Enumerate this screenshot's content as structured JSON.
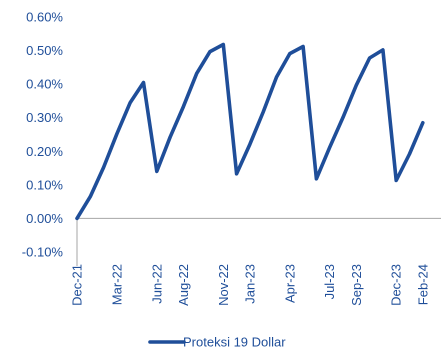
{
  "chart_data": {
    "type": "line",
    "title": "",
    "xlabel": "",
    "ylabel": "",
    "ylim": [
      -0.001,
      0.006
    ],
    "y_ticks": [
      {
        "value": 0.006,
        "label": "0.60%"
      },
      {
        "value": 0.005,
        "label": "0.50%"
      },
      {
        "value": 0.004,
        "label": "0.40%"
      },
      {
        "value": 0.003,
        "label": "0.30%"
      },
      {
        "value": 0.002,
        "label": "0.20%"
      },
      {
        "value": 0.001,
        "label": "0.10%"
      },
      {
        "value": 0.0,
        "label": "0.00%"
      },
      {
        "value": -0.001,
        "label": "-0.10%"
      }
    ],
    "x_ticks": [
      "Dec-21",
      "Mar-22",
      "Jun-22",
      "Aug-22",
      "Nov-22",
      "Jan-23",
      "Apr-23",
      "Jul-23",
      "Sep-23",
      "Dec-23",
      "Feb-24"
    ],
    "legend_position": "bottom",
    "colors": {
      "series": "#1f4e99",
      "text": "#1f4e99",
      "axis": "#a6a6a6"
    },
    "series": [
      {
        "name": "Proteksi 19 Dollar",
        "x": [
          "Dec-21",
          "Jan-22",
          "Feb-22",
          "Mar-22",
          "Apr-22",
          "May-22",
          "Jun-22",
          "Jul-22",
          "Aug-22",
          "Sep-22",
          "Oct-22",
          "Nov-22",
          "Dec-22",
          "Jan-23",
          "Feb-23",
          "Mar-23",
          "Apr-23",
          "May-23",
          "Jun-23",
          "Jul-23",
          "Aug-23",
          "Sep-23",
          "Oct-23",
          "Nov-23",
          "Dec-23",
          "Jan-24",
          "Feb-24"
        ],
        "values": [
          0.0,
          0.00065,
          0.00152,
          0.00252,
          0.00345,
          0.00405,
          0.0014,
          0.00242,
          0.00333,
          0.00432,
          0.00497,
          0.00518,
          0.00133,
          0.00221,
          0.00317,
          0.00421,
          0.00491,
          0.00512,
          0.00118,
          0.00212,
          0.00301,
          0.00397,
          0.00478,
          0.00502,
          0.00113,
          0.00192,
          0.00285
        ]
      }
    ]
  }
}
